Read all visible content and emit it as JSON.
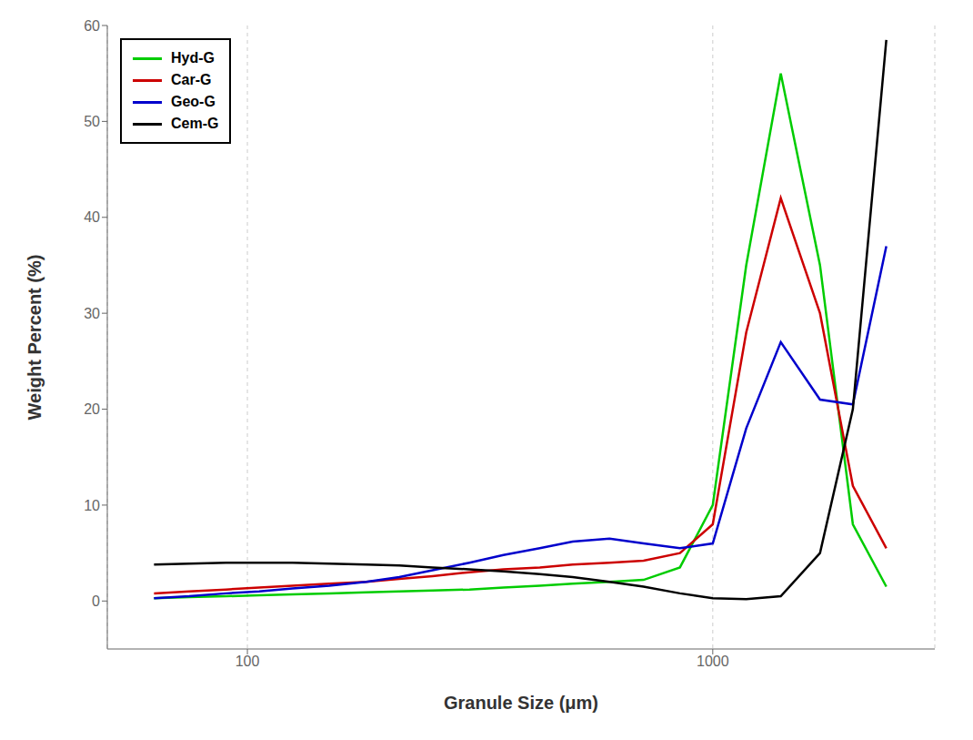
{
  "chart_data": {
    "type": "line",
    "title": "",
    "xlabel": "Granule Size (μm)",
    "ylabel": "Weight Percent (%)",
    "log": "x",
    "xlim": [
      50,
      3000
    ],
    "xticks": [
      100,
      1000
    ],
    "ylim": [
      -5,
      60
    ],
    "yticks": [
      0,
      10,
      20,
      30,
      40,
      50,
      60
    ],
    "grid": "x",
    "legend": "upper left",
    "x": [
      63,
      75,
      90,
      106,
      125,
      150,
      180,
      212,
      250,
      300,
      355,
      425,
      500,
      600,
      710,
      850,
      1000,
      1180,
      1400,
      1700,
      2000,
      2360
    ],
    "series": [
      {
        "name": "Hyd-G",
        "color": "#00cc00",
        "values": [
          0.3,
          0.4,
          0.5,
          0.6,
          0.7,
          0.8,
          0.9,
          1.0,
          1.1,
          1.2,
          1.4,
          1.6,
          1.8,
          2.0,
          2.2,
          3.5,
          10.0,
          35.0,
          55.0,
          35.0,
          8.0,
          1.5
        ]
      },
      {
        "name": "Car-G",
        "color": "#cc0000",
        "values": [
          0.8,
          1.0,
          1.2,
          1.4,
          1.6,
          1.8,
          2.0,
          2.3,
          2.6,
          3.0,
          3.3,
          3.5,
          3.8,
          4.0,
          4.2,
          5.0,
          8.0,
          28.0,
          42.0,
          30.0,
          12.0,
          5.5
        ]
      },
      {
        "name": "Geo-G",
        "color": "#0000cc",
        "values": [
          0.3,
          0.5,
          0.8,
          1.0,
          1.3,
          1.6,
          2.0,
          2.5,
          3.2,
          4.0,
          4.8,
          5.5,
          6.2,
          6.5,
          6.0,
          5.5,
          6.0,
          18.0,
          27.0,
          21.0,
          20.5,
          37.0
        ]
      },
      {
        "name": "Cem-G",
        "color": "#000000",
        "values": [
          3.8,
          3.9,
          4.0,
          4.0,
          4.0,
          3.9,
          3.8,
          3.7,
          3.5,
          3.3,
          3.1,
          2.8,
          2.5,
          2.0,
          1.5,
          0.8,
          0.3,
          0.2,
          0.5,
          5.0,
          20.0,
          58.5
        ]
      }
    ]
  }
}
